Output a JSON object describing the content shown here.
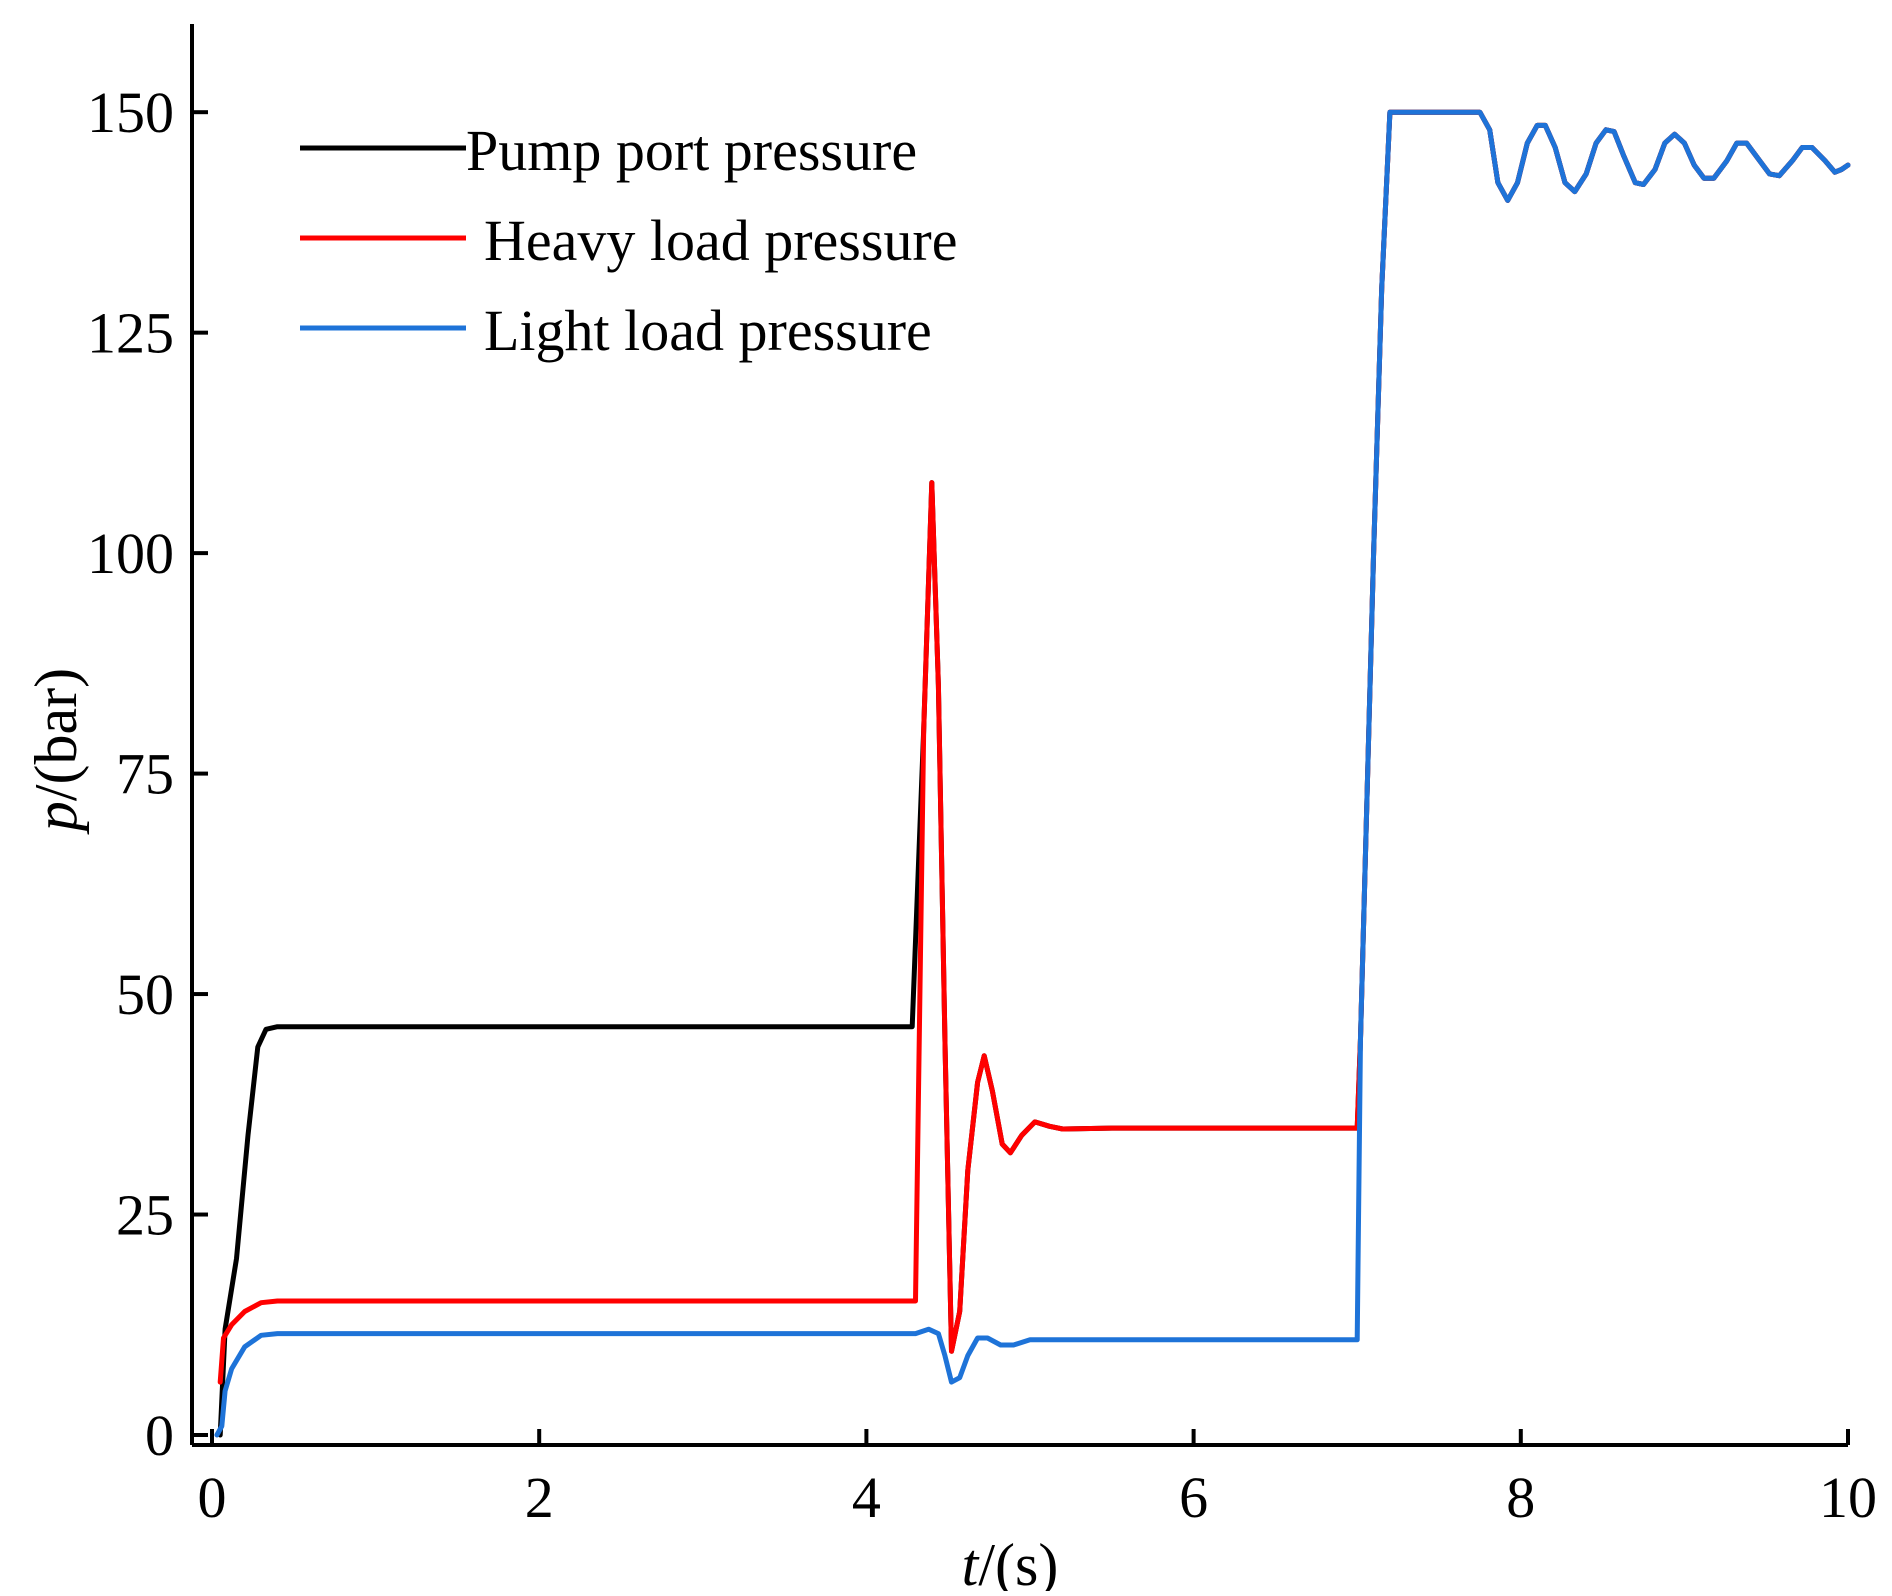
{
  "chart_data": {
    "type": "line",
    "title": "",
    "xlabel_var": "t",
    "xlabel_unit": "/(s)",
    "ylabel_var": "p",
    "ylabel_unit": "/(bar)",
    "xlim": [
      0,
      10
    ],
    "ylim": [
      0,
      160
    ],
    "xticks": [
      0,
      2,
      4,
      6,
      8,
      10
    ],
    "xtick_labels": [
      "0",
      "2",
      "4",
      "6",
      "8",
      "10"
    ],
    "yticks": [
      0,
      25,
      50,
      75,
      100,
      125,
      150
    ],
    "ytick_labels": [
      "0",
      "25",
      "50",
      "75",
      "100",
      "125",
      "150"
    ],
    "grid": false,
    "legend_position": "top-left",
    "series": [
      {
        "name": "Pump port pressure",
        "color": "#000000",
        "points": [
          [
            0.05,
            0
          ],
          [
            0.08,
            12
          ],
          [
            0.15,
            20
          ],
          [
            0.22,
            34
          ],
          [
            0.28,
            44
          ],
          [
            0.33,
            46
          ],
          [
            0.4,
            46.3
          ],
          [
            1,
            46.3
          ],
          [
            2,
            46.3
          ],
          [
            3,
            46.3
          ],
          [
            4,
            46.3
          ],
          [
            4.28,
            46.3
          ],
          [
            4.35,
            80
          ],
          [
            4.4,
            108
          ],
          [
            4.44,
            85
          ],
          [
            4.48,
            45
          ],
          [
            4.52,
            9.5
          ],
          [
            4.57,
            14
          ],
          [
            4.62,
            30
          ],
          [
            4.68,
            40
          ],
          [
            4.72,
            43
          ],
          [
            4.77,
            39
          ],
          [
            4.83,
            33
          ],
          [
            4.88,
            32
          ],
          [
            4.95,
            34
          ],
          [
            5.03,
            35.5
          ],
          [
            5.12,
            35
          ],
          [
            5.2,
            34.7
          ],
          [
            5.5,
            34.8
          ],
          [
            6,
            34.8
          ],
          [
            6.5,
            34.8
          ],
          [
            7.0,
            34.8
          ],
          [
            7.02,
            45
          ],
          [
            7.1,
            100
          ],
          [
            7.15,
            130
          ],
          [
            7.2,
            150
          ],
          [
            7.3,
            150
          ],
          [
            7.5,
            150
          ],
          [
            7.75,
            150
          ],
          [
            7.81,
            148
          ],
          [
            7.86,
            142
          ],
          [
            7.92,
            140
          ],
          [
            7.98,
            142
          ],
          [
            8.04,
            146.5
          ],
          [
            8.1,
            148.5
          ],
          [
            8.15,
            148.5
          ],
          [
            8.21,
            146
          ],
          [
            8.27,
            142
          ],
          [
            8.33,
            141
          ],
          [
            8.4,
            143
          ],
          [
            8.46,
            146.5
          ],
          [
            8.52,
            148
          ],
          [
            8.57,
            147.8
          ],
          [
            8.63,
            145
          ],
          [
            8.7,
            142
          ],
          [
            8.75,
            141.8
          ],
          [
            8.82,
            143.5
          ],
          [
            8.88,
            146.5
          ],
          [
            8.94,
            147.5
          ],
          [
            9.0,
            146.5
          ],
          [
            9.06,
            144
          ],
          [
            9.12,
            142.5
          ],
          [
            9.18,
            142.5
          ],
          [
            9.26,
            144.5
          ],
          [
            9.32,
            146.5
          ],
          [
            9.38,
            146.5
          ],
          [
            9.46,
            144.5
          ],
          [
            9.52,
            143
          ],
          [
            9.58,
            142.8
          ],
          [
            9.66,
            144.5
          ],
          [
            9.72,
            146
          ],
          [
            9.78,
            146
          ],
          [
            9.86,
            144.5
          ],
          [
            9.92,
            143.2
          ],
          [
            9.96,
            143.5
          ],
          [
            10.0,
            144
          ]
        ]
      },
      {
        "name": "Heavy load pressure",
        "color": "#ff0000",
        "points": [
          [
            0.05,
            6
          ],
          [
            0.07,
            11
          ],
          [
            0.12,
            12.5
          ],
          [
            0.2,
            14
          ],
          [
            0.3,
            15
          ],
          [
            0.4,
            15.2
          ],
          [
            1,
            15.2
          ],
          [
            2,
            15.2
          ],
          [
            3,
            15.2
          ],
          [
            4,
            15.2
          ],
          [
            4.3,
            15.2
          ],
          [
            4.35,
            80
          ],
          [
            4.4,
            108
          ],
          [
            4.44,
            85
          ],
          [
            4.48,
            45
          ],
          [
            4.52,
            9.5
          ],
          [
            4.57,
            14
          ],
          [
            4.62,
            30
          ],
          [
            4.68,
            40
          ],
          [
            4.72,
            43
          ],
          [
            4.77,
            39
          ],
          [
            4.83,
            33
          ],
          [
            4.88,
            32
          ],
          [
            4.95,
            34
          ],
          [
            5.03,
            35.5
          ],
          [
            5.12,
            35
          ],
          [
            5.2,
            34.7
          ],
          [
            5.5,
            34.8
          ],
          [
            6,
            34.8
          ],
          [
            6.5,
            34.8
          ],
          [
            7.0,
            34.8
          ],
          [
            7.02,
            45
          ],
          [
            7.1,
            100
          ],
          [
            7.15,
            130
          ],
          [
            7.2,
            150
          ],
          [
            7.3,
            150
          ],
          [
            7.5,
            150
          ],
          [
            7.75,
            150
          ],
          [
            7.81,
            148
          ],
          [
            7.86,
            142
          ],
          [
            7.92,
            140
          ],
          [
            7.98,
            142
          ],
          [
            8.04,
            146.5
          ],
          [
            8.1,
            148.5
          ],
          [
            8.15,
            148.5
          ],
          [
            8.21,
            146
          ],
          [
            8.27,
            142
          ],
          [
            8.33,
            141
          ],
          [
            8.4,
            143
          ],
          [
            8.46,
            146.5
          ],
          [
            8.52,
            148
          ],
          [
            8.57,
            147.8
          ],
          [
            8.63,
            145
          ],
          [
            8.7,
            142
          ],
          [
            8.75,
            141.8
          ],
          [
            8.82,
            143.5
          ],
          [
            8.88,
            146.5
          ],
          [
            8.94,
            147.5
          ],
          [
            9.0,
            146.5
          ],
          [
            9.06,
            144
          ],
          [
            9.12,
            142.5
          ],
          [
            9.18,
            142.5
          ],
          [
            9.26,
            144.5
          ],
          [
            9.32,
            146.5
          ],
          [
            9.38,
            146.5
          ],
          [
            9.46,
            144.5
          ],
          [
            9.52,
            143
          ],
          [
            9.58,
            142.8
          ],
          [
            9.66,
            144.5
          ],
          [
            9.72,
            146
          ],
          [
            9.78,
            146
          ],
          [
            9.86,
            144.5
          ],
          [
            9.92,
            143.2
          ],
          [
            9.96,
            143.5
          ],
          [
            10.0,
            144
          ]
        ]
      },
      {
        "name": "Light load pressure",
        "color": "#1e73d8",
        "points": [
          [
            0.03,
            0
          ],
          [
            0.06,
            1
          ],
          [
            0.08,
            5
          ],
          [
            0.12,
            7.5
          ],
          [
            0.2,
            10
          ],
          [
            0.3,
            11.3
          ],
          [
            0.4,
            11.5
          ],
          [
            1,
            11.5
          ],
          [
            2,
            11.5
          ],
          [
            3,
            11.5
          ],
          [
            4,
            11.5
          ],
          [
            4.3,
            11.5
          ],
          [
            4.38,
            12
          ],
          [
            4.44,
            11.5
          ],
          [
            4.48,
            9
          ],
          [
            4.52,
            6
          ],
          [
            4.57,
            6.5
          ],
          [
            4.62,
            9
          ],
          [
            4.68,
            11
          ],
          [
            4.74,
            11
          ],
          [
            4.82,
            10.2
          ],
          [
            4.9,
            10.2
          ],
          [
            5.0,
            10.8
          ],
          [
            5.1,
            10.8
          ],
          [
            5.3,
            10.8
          ],
          [
            6,
            10.8
          ],
          [
            6.5,
            10.8
          ],
          [
            7.0,
            10.8
          ],
          [
            7.02,
            45
          ],
          [
            7.1,
            100
          ],
          [
            7.15,
            130
          ],
          [
            7.2,
            150
          ],
          [
            7.3,
            150
          ],
          [
            7.5,
            150
          ],
          [
            7.75,
            150
          ],
          [
            7.81,
            148
          ],
          [
            7.86,
            142
          ],
          [
            7.92,
            140
          ],
          [
            7.98,
            142
          ],
          [
            8.04,
            146.5
          ],
          [
            8.1,
            148.5
          ],
          [
            8.15,
            148.5
          ],
          [
            8.21,
            146
          ],
          [
            8.27,
            142
          ],
          [
            8.33,
            141
          ],
          [
            8.4,
            143
          ],
          [
            8.46,
            146.5
          ],
          [
            8.52,
            148
          ],
          [
            8.57,
            147.8
          ],
          [
            8.63,
            145
          ],
          [
            8.7,
            142
          ],
          [
            8.75,
            141.8
          ],
          [
            8.82,
            143.5
          ],
          [
            8.88,
            146.5
          ],
          [
            8.94,
            147.5
          ],
          [
            9.0,
            146.5
          ],
          [
            9.06,
            144
          ],
          [
            9.12,
            142.5
          ],
          [
            9.18,
            142.5
          ],
          [
            9.26,
            144.5
          ],
          [
            9.32,
            146.5
          ],
          [
            9.38,
            146.5
          ],
          [
            9.46,
            144.5
          ],
          [
            9.52,
            143
          ],
          [
            9.58,
            142.8
          ],
          [
            9.66,
            144.5
          ],
          [
            9.72,
            146
          ],
          [
            9.78,
            146
          ],
          [
            9.86,
            144.5
          ],
          [
            9.92,
            143.2
          ],
          [
            9.96,
            143.5
          ],
          [
            10.0,
            144
          ]
        ]
      }
    ]
  }
}
